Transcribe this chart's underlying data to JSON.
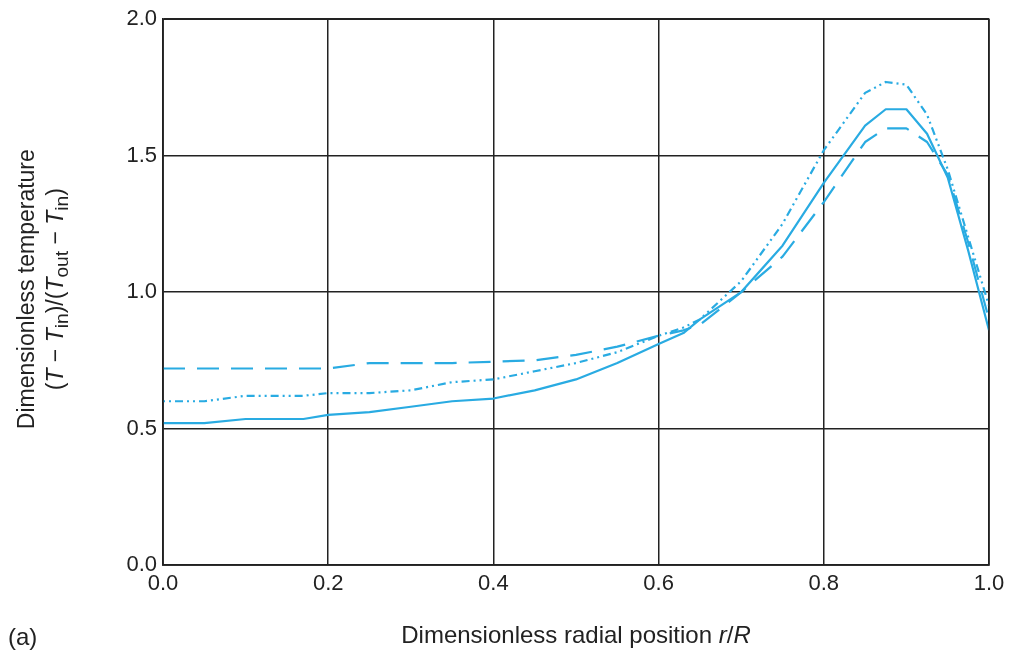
{
  "chart_data": {
    "type": "line",
    "xlabel": "Dimensionless radial position r/R",
    "ylabel": "Dimensionless temperature\n(T − T$_{in}$)/(T$_{out}$ − T$_{in}$)",
    "annotations": [
      "(a)"
    ],
    "xlim": [
      0,
      1
    ],
    "xticks": [
      {
        "value": 0,
        "label": "0.0"
      },
      0.2,
      0.4,
      0.6,
      0.8,
      {
        "value": 1,
        "label": "1.0"
      }
    ],
    "ylim": [
      0,
      2
    ],
    "yticks": [
      {
        "value": 0,
        "label": "0.0"
      },
      0.5,
      {
        "value": 1,
        "label": "1.0"
      },
      1.5,
      {
        "value": 2,
        "label": "2.0"
      }
    ],
    "grid": true,
    "legend": false,
    "marker": "none",
    "x": [
      0,
      0.05,
      0.1,
      0.17,
      0.2,
      0.25,
      0.3,
      0.35,
      0.4,
      0.45,
      0.5,
      0.55,
      0.6,
      0.63,
      0.65,
      0.7,
      0.75,
      0.8,
      0.85,
      0.875,
      0.9,
      0.925,
      0.95,
      0.975,
      1
    ],
    "series": [
      {
        "color": "#29abe2",
        "line_style": "solid",
        "values": [
          0.52,
          0.52,
          0.535,
          0.535,
          0.55,
          0.56,
          0.58,
          0.6,
          0.61,
          0.64,
          0.68,
          0.74,
          0.81,
          0.85,
          0.9,
          1.0,
          1.17,
          1.4,
          1.61,
          1.67,
          1.67,
          1.58,
          1.42,
          1.15,
          0.86
        ]
      },
      {
        "color": "#29abe2",
        "line_style": "dashed",
        "values": [
          0.72,
          0.72,
          0.72,
          0.72,
          0.72,
          0.74,
          0.74,
          0.74,
          0.745,
          0.75,
          0.77,
          0.8,
          0.84,
          0.86,
          0.88,
          1.0,
          1.13,
          1.33,
          1.55,
          1.6,
          1.6,
          1.55,
          1.43,
          1.18,
          0.9
        ]
      },
      {
        "color": "#29abe2",
        "line_style": "dotted",
        "values": [
          0.6,
          0.6,
          0.62,
          0.62,
          0.63,
          0.63,
          0.64,
          0.67,
          0.68,
          0.71,
          0.74,
          0.78,
          0.84,
          0.87,
          0.9,
          1.04,
          1.25,
          1.52,
          1.73,
          1.77,
          1.76,
          1.65,
          1.45,
          1.2,
          0.95
        ]
      }
    ]
  }
}
